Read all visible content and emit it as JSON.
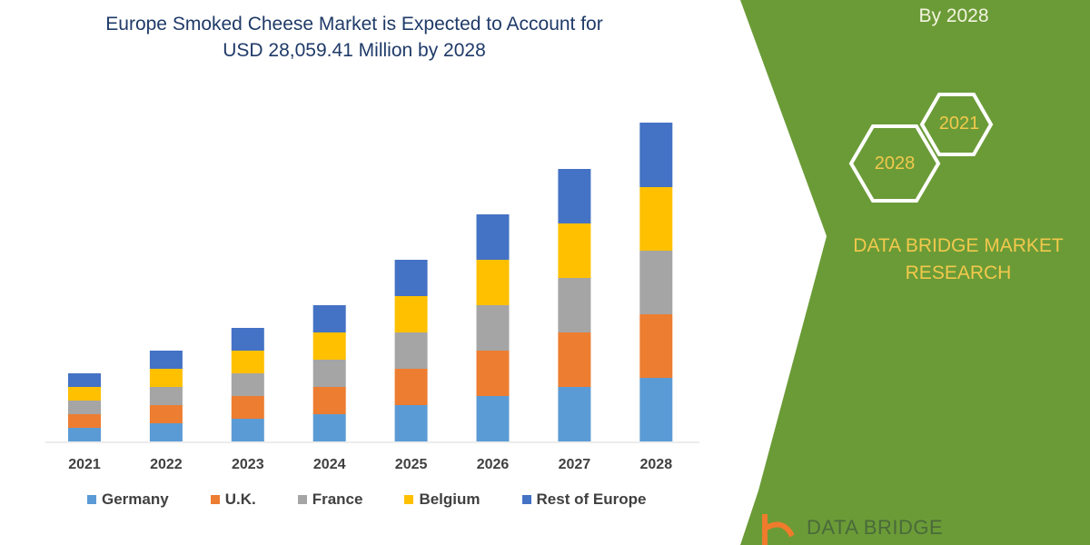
{
  "header": {
    "title_line1": "Europe Smoked Cheese Market is Expected to Account for",
    "title_line2": "USD 28,059.41 Million by 2028"
  },
  "side_panel": {
    "top_text": "By 2028",
    "hex_start": "2021",
    "hex_end": "2028",
    "brand_line1": "DATA BRIDGE MARKET",
    "brand_line2": "RESEARCH",
    "logo_text": "DATA BRIDGE",
    "panel_color": "#6b9b37",
    "accent_text_color": "#f2c94c"
  },
  "chart_data": {
    "type": "bar",
    "stacked": true,
    "title": "Europe Smoked Cheese Market is Expected to Account for USD 28,059.41 Million by 2028",
    "categories": [
      "2021",
      "2022",
      "2023",
      "2024",
      "2025",
      "2026",
      "2027",
      "2028"
    ],
    "series": [
      {
        "name": "Germany",
        "color": "#5b9bd5",
        "values": [
          15,
          20,
          25,
          30,
          40,
          50,
          60,
          70
        ]
      },
      {
        "name": "U.K.",
        "color": "#ed7d31",
        "values": [
          15,
          20,
          25,
          30,
          40,
          50,
          60,
          70
        ]
      },
      {
        "name": "France",
        "color": "#a5a5a5",
        "values": [
          15,
          20,
          25,
          30,
          40,
          50,
          60,
          70
        ]
      },
      {
        "name": "Belgium",
        "color": "#ffc000",
        "values": [
          15,
          20,
          25,
          30,
          40,
          50,
          60,
          70
        ]
      },
      {
        "name": "Rest of Europe",
        "color": "#4472c4",
        "values": [
          15,
          20,
          25,
          30,
          40,
          50,
          60,
          71
        ]
      }
    ],
    "xlabel": "",
    "ylabel": "",
    "y_axis_shown": false,
    "grid": false,
    "legend_placement": "bottom"
  }
}
